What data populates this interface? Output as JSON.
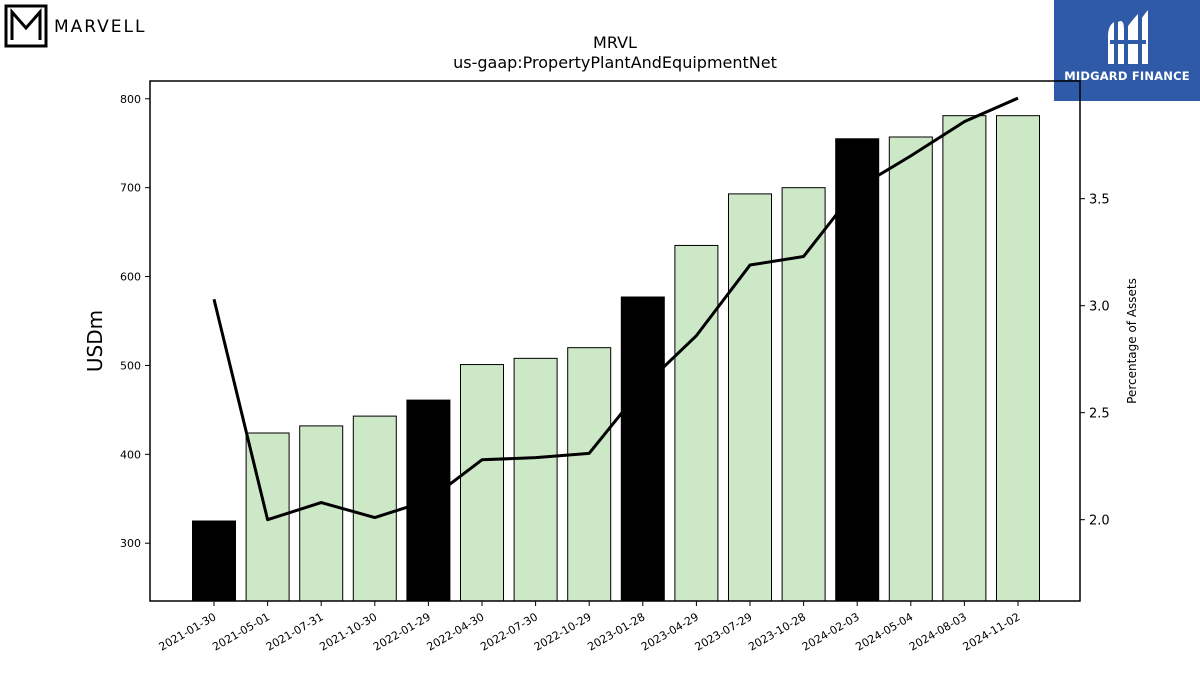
{
  "logos": {
    "left_brand": "MARVELL",
    "right_brand": "MIDGARD FINANCE"
  },
  "colors": {
    "quarter_bar": "#cde8c7",
    "fiscal_year_end_bar": "#000000",
    "bar_edge": "#000000",
    "line": "#000000",
    "midgard_blue": "#2f5aa8"
  },
  "chart_data": {
    "type": "bar",
    "title": "MRVL",
    "subtitle": "us-gaap:PropertyPlantAndEquipmentNet",
    "xlabel": "",
    "ylabel": "USDm",
    "y2label": "Percentage of Assets",
    "categories": [
      "2021-01-30",
      "2021-05-01",
      "2021-07-31",
      "2021-10-30",
      "2022-01-29",
      "2022-04-30",
      "2022-07-30",
      "2022-10-29",
      "2023-01-28",
      "2023-04-29",
      "2023-07-29",
      "2023-10-28",
      "2024-02-03",
      "2024-05-04",
      "2024-08-03",
      "2024-11-02"
    ],
    "series": [
      {
        "kind": "bar",
        "axis": "left",
        "values": [
          325,
          424,
          432,
          443,
          461,
          501,
          508,
          520,
          577,
          635,
          693,
          700,
          755,
          757,
          781,
          781
        ],
        "fiscal_year_end": [
          true,
          false,
          false,
          false,
          true,
          false,
          false,
          false,
          true,
          false,
          false,
          false,
          true,
          false,
          false,
          false
        ]
      },
      {
        "kind": "line",
        "axis": "right",
        "values": [
          3.03,
          2.0,
          2.08,
          2.01,
          2.09,
          2.28,
          2.29,
          2.31,
          2.62,
          2.86,
          3.19,
          3.23,
          3.55,
          3.7,
          3.86,
          3.97
        ]
      }
    ],
    "ylim": [
      235,
      820
    ],
    "y2lim": [
      1.62,
      4.05
    ],
    "yticks": [
      300,
      400,
      500,
      600,
      700,
      800
    ],
    "y2ticks": [
      2.0,
      2.5,
      3.0,
      3.5
    ],
    "grid": false,
    "legend": "none"
  }
}
